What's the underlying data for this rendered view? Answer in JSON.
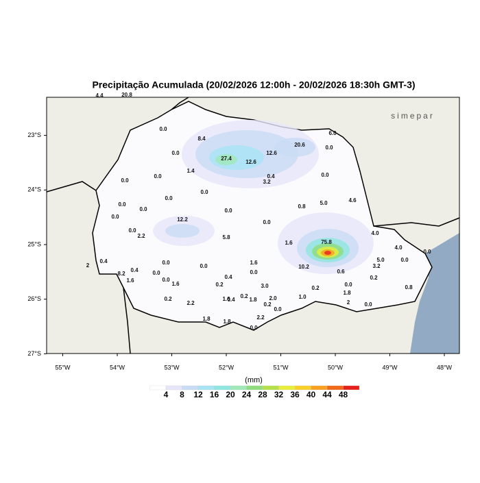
{
  "header": {
    "title": "Precipitação Acumulada (20/02/2026 12:00h - 20/02/2026 18:30h GMT-3)",
    "logo": "simepar"
  },
  "map": {
    "lon_ticks": [
      {
        "value": -55,
        "label": "55°W"
      },
      {
        "value": -54,
        "label": "54°W"
      },
      {
        "value": -53,
        "label": "53°W"
      },
      {
        "value": -52,
        "label": "52°W"
      },
      {
        "value": -51,
        "label": "51°W"
      },
      {
        "value": -50,
        "label": "50°W"
      },
      {
        "value": -49,
        "label": "49°W"
      },
      {
        "value": -48,
        "label": "48°W"
      }
    ],
    "lat_ticks": [
      {
        "value": -23,
        "label": "23°S"
      },
      {
        "value": -24,
        "label": "24°S"
      },
      {
        "value": -25,
        "label": "25°S"
      },
      {
        "value": -26,
        "label": "26°S"
      },
      {
        "value": -27,
        "label": "27°S"
      }
    ],
    "stations": [
      "4.4",
      "20.8",
      "0.0",
      "8.4",
      "6.0",
      "20.6",
      "0.0",
      "0.0",
      "27.4",
      "12.6",
      "12.6",
      "1.4",
      "0.0",
      "0.0",
      "0.4",
      "3.2",
      "0.0",
      "0.0",
      "0.0",
      "0.0",
      "0.0",
      "0.8",
      "5.0",
      "4.6",
      "0.0",
      "0.0",
      "12.2",
      "0.0",
      "0.0",
      "2.2",
      "5.8",
      "4.0",
      "1.6",
      "75.8",
      "0.4",
      "0.0",
      "0.0",
      "1.6",
      "10.2",
      "0.0",
      "0.6",
      "3.2",
      "5.0",
      "4.0",
      "0.0",
      "0.0",
      "0.4",
      "0.0",
      "8.2",
      "1.6",
      "0.0",
      "0.4",
      "0.2",
      "1.6",
      "3.0",
      "0.0",
      "0.2",
      "0.2",
      "1.8",
      "2.0",
      "1.6",
      "0.4",
      "0.2",
      "1.8",
      "0.2",
      "2.2",
      "0.2",
      "0.0",
      "2",
      "0.0",
      "0.8",
      "2",
      "1.8",
      "1.8",
      "2.2",
      "0.0",
      "1.0"
    ]
  },
  "colorbar": {
    "label": "(mm)",
    "ticks": [
      4,
      8,
      12,
      16,
      20,
      24,
      28,
      32,
      36,
      40,
      44,
      48
    ],
    "colors": [
      "#ffffff",
      "#e6e6fa",
      "#c9dcf5",
      "#a6e3f5",
      "#8ee6e0",
      "#9fe8b8",
      "#8fdc7c",
      "#b6e04a",
      "#e8ee3a",
      "#f8d028",
      "#f8a020",
      "#f06818",
      "#e8201a"
    ]
  }
}
